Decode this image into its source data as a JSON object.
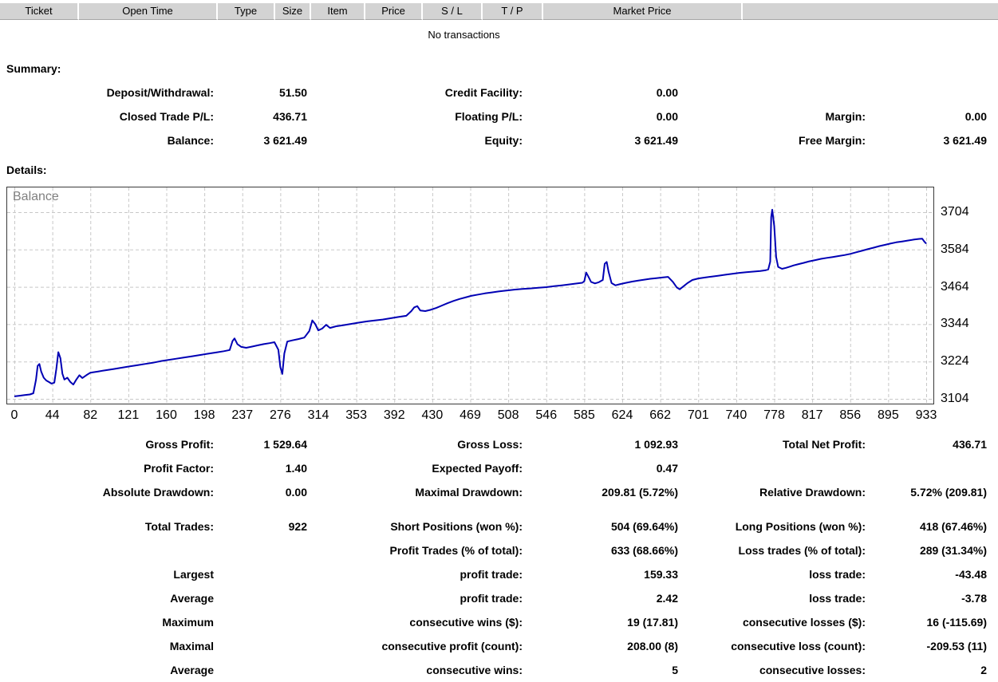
{
  "table": {
    "columns": [
      "Ticket",
      "Open Time",
      "Type",
      "Size",
      "Item",
      "Price",
      "S / L",
      "T / P",
      "Market Price",
      ""
    ],
    "empty_message": "No transactions"
  },
  "summary": {
    "title": "Summary:",
    "rows": [
      [
        "Deposit/Withdrawal:",
        "51.50",
        "Credit Facility:",
        "0.00",
        "",
        ""
      ],
      [
        "Closed Trade P/L:",
        "436.71",
        "Floating P/L:",
        "0.00",
        "Margin:",
        "0.00"
      ],
      [
        "Balance:",
        "3 621.49",
        "Equity:",
        "3 621.49",
        "Free Margin:",
        "3 621.49"
      ]
    ]
  },
  "details": {
    "title": "Details:"
  },
  "chart_data": {
    "type": "line",
    "title": "Balance",
    "line_color": "#0000b4",
    "grid_color": "#c8c8c8",
    "ylim": [
      3104,
      3704
    ],
    "y_ticks": [
      3104,
      3224,
      3344,
      3464,
      3584,
      3704
    ],
    "x_ticks": [
      0,
      44,
      82,
      121,
      160,
      198,
      237,
      276,
      314,
      353,
      392,
      430,
      469,
      508,
      546,
      585,
      624,
      662,
      701,
      740,
      778,
      817,
      856,
      895,
      933
    ],
    "legend_position": "top-left-inside",
    "grid": "dashed",
    "series": [
      {
        "name": "Balance",
        "points": [
          [
            0,
            3112
          ],
          [
            6,
            3114
          ],
          [
            12,
            3116
          ],
          [
            18,
            3118
          ],
          [
            22,
            3122
          ],
          [
            25,
            3165
          ],
          [
            27,
            3210
          ],
          [
            29,
            3216
          ],
          [
            31,
            3192
          ],
          [
            34,
            3172
          ],
          [
            37,
            3163
          ],
          [
            40,
            3158
          ],
          [
            43,
            3153
          ],
          [
            46,
            3156
          ],
          [
            48,
            3200
          ],
          [
            50,
            3254
          ],
          [
            52,
            3235
          ],
          [
            54,
            3185
          ],
          [
            56,
            3166
          ],
          [
            59,
            3172
          ],
          [
            62,
            3158
          ],
          [
            65,
            3150
          ],
          [
            68,
            3166
          ],
          [
            71,
            3180
          ],
          [
            74,
            3171
          ],
          [
            78,
            3180
          ],
          [
            82,
            3188
          ],
          [
            90,
            3192
          ],
          [
            98,
            3196
          ],
          [
            106,
            3200
          ],
          [
            114,
            3204
          ],
          [
            122,
            3208
          ],
          [
            130,
            3212
          ],
          [
            138,
            3216
          ],
          [
            146,
            3220
          ],
          [
            154,
            3225
          ],
          [
            162,
            3229
          ],
          [
            170,
            3233
          ],
          [
            178,
            3237
          ],
          [
            186,
            3241
          ],
          [
            194,
            3245
          ],
          [
            202,
            3249
          ],
          [
            210,
            3253
          ],
          [
            218,
            3257
          ],
          [
            224,
            3261
          ],
          [
            227,
            3290
          ],
          [
            229,
            3298
          ],
          [
            232,
            3280
          ],
          [
            236,
            3271
          ],
          [
            241,
            3268
          ],
          [
            247,
            3272
          ],
          [
            253,
            3276
          ],
          [
            259,
            3280
          ],
          [
            265,
            3283
          ],
          [
            270,
            3286
          ],
          [
            274,
            3262
          ],
          [
            276,
            3206
          ],
          [
            278,
            3184
          ],
          [
            280,
            3250
          ],
          [
            283,
            3288
          ],
          [
            288,
            3292
          ],
          [
            294,
            3296
          ],
          [
            300,
            3301
          ],
          [
            305,
            3322
          ],
          [
            308,
            3356
          ],
          [
            311,
            3344
          ],
          [
            314,
            3324
          ],
          [
            318,
            3330
          ],
          [
            322,
            3342
          ],
          [
            326,
            3332
          ],
          [
            332,
            3337
          ],
          [
            340,
            3341
          ],
          [
            348,
            3345
          ],
          [
            356,
            3349
          ],
          [
            364,
            3353
          ],
          [
            372,
            3356
          ],
          [
            380,
            3359
          ],
          [
            388,
            3363
          ],
          [
            396,
            3367
          ],
          [
            404,
            3371
          ],
          [
            409,
            3386
          ],
          [
            412,
            3398
          ],
          [
            415,
            3402
          ],
          [
            418,
            3388
          ],
          [
            423,
            3386
          ],
          [
            428,
            3390
          ],
          [
            434,
            3396
          ],
          [
            440,
            3404
          ],
          [
            446,
            3412
          ],
          [
            452,
            3419
          ],
          [
            458,
            3425
          ],
          [
            464,
            3430
          ],
          [
            470,
            3435
          ],
          [
            477,
            3439
          ],
          [
            484,
            3443
          ],
          [
            491,
            3446
          ],
          [
            498,
            3449
          ],
          [
            506,
            3452
          ],
          [
            514,
            3455
          ],
          [
            522,
            3457
          ],
          [
            530,
            3459
          ],
          [
            538,
            3461
          ],
          [
            546,
            3463
          ],
          [
            554,
            3466
          ],
          [
            562,
            3469
          ],
          [
            570,
            3472
          ],
          [
            578,
            3475
          ],
          [
            583,
            3477
          ],
          [
            585,
            3482
          ],
          [
            587,
            3510
          ],
          [
            589,
            3498
          ],
          [
            592,
            3480
          ],
          [
            596,
            3475
          ],
          [
            600,
            3479
          ],
          [
            604,
            3486
          ],
          [
            606,
            3538
          ],
          [
            608,
            3544
          ],
          [
            610,
            3512
          ],
          [
            613,
            3476
          ],
          [
            617,
            3469
          ],
          [
            622,
            3473
          ],
          [
            628,
            3477
          ],
          [
            634,
            3481
          ],
          [
            640,
            3484
          ],
          [
            646,
            3487
          ],
          [
            652,
            3490
          ],
          [
            658,
            3492
          ],
          [
            664,
            3494
          ],
          [
            670,
            3496
          ],
          [
            675,
            3480
          ],
          [
            679,
            3462
          ],
          [
            682,
            3456
          ],
          [
            686,
            3466
          ],
          [
            690,
            3476
          ],
          [
            695,
            3486
          ],
          [
            701,
            3491
          ],
          [
            708,
            3494
          ],
          [
            715,
            3497
          ],
          [
            722,
            3500
          ],
          [
            729,
            3503
          ],
          [
            736,
            3506
          ],
          [
            743,
            3509
          ],
          [
            750,
            3511
          ],
          [
            757,
            3513
          ],
          [
            764,
            3515
          ],
          [
            769,
            3517
          ],
          [
            772,
            3520
          ],
          [
            774,
            3545
          ],
          [
            775,
            3688
          ],
          [
            776,
            3712
          ],
          [
            778,
            3660
          ],
          [
            780,
            3560
          ],
          [
            782,
            3528
          ],
          [
            786,
            3522
          ],
          [
            790,
            3525
          ],
          [
            794,
            3529
          ],
          [
            798,
            3533
          ],
          [
            803,
            3537
          ],
          [
            808,
            3541
          ],
          [
            814,
            3546
          ],
          [
            820,
            3550
          ],
          [
            826,
            3554
          ],
          [
            832,
            3557
          ],
          [
            838,
            3560
          ],
          [
            844,
            3563
          ],
          [
            850,
            3566
          ],
          [
            856,
            3570
          ],
          [
            862,
            3575
          ],
          [
            868,
            3580
          ],
          [
            874,
            3585
          ],
          [
            880,
            3590
          ],
          [
            886,
            3595
          ],
          [
            892,
            3599
          ],
          [
            897,
            3603
          ],
          [
            903,
            3607
          ],
          [
            909,
            3610
          ],
          [
            915,
            3613
          ],
          [
            921,
            3616
          ],
          [
            926,
            3618
          ],
          [
            929,
            3619
          ],
          [
            931,
            3610
          ],
          [
            933,
            3603
          ]
        ]
      }
    ]
  },
  "stats": {
    "rows": [
      [
        "Gross Profit:",
        "1 529.64",
        "Gross Loss:",
        "1 092.93",
        "Total Net Profit:",
        "436.71"
      ],
      [
        "Profit Factor:",
        "1.40",
        "Expected Payoff:",
        "0.47",
        "",
        ""
      ],
      [
        "Absolute Drawdown:",
        "0.00",
        "Maximal Drawdown:",
        "209.81 (5.72%)",
        "Relative Drawdown:",
        "5.72% (209.81)"
      ],
      [
        "Total Trades:",
        "922",
        "Short Positions (won %):",
        "504 (69.64%)",
        "Long Positions (won %):",
        "418 (67.46%)"
      ],
      [
        "",
        "",
        "Profit Trades (% of total):",
        "633 (68.66%)",
        "Loss trades (% of total):",
        "289 (31.34%)"
      ],
      [
        "Largest",
        "",
        "profit trade:",
        "159.33",
        "loss trade:",
        "-43.48"
      ],
      [
        "Average",
        "",
        "profit trade:",
        "2.42",
        "loss trade:",
        "-3.78"
      ],
      [
        "Maximum",
        "",
        "consecutive wins ($):",
        "19 (17.81)",
        "consecutive losses ($):",
        "16 (-115.69)"
      ],
      [
        "Maximal",
        "",
        "consecutive profit (count):",
        "208.00 (8)",
        "consecutive loss (count):",
        "-209.53 (11)"
      ],
      [
        "Average",
        "",
        "consecutive wins:",
        "5",
        "consecutive losses:",
        "2"
      ]
    ],
    "gap_before_row": 3
  }
}
